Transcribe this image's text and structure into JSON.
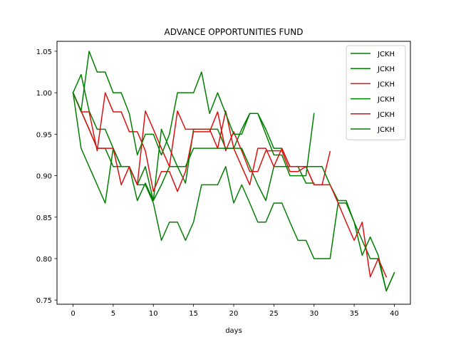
{
  "chart_data": {
    "type": "line",
    "title": "ADVANCE OPPORTUNITIES FUND",
    "xlabel": "days",
    "ylabel": "",
    "xlim": [
      -2,
      42
    ],
    "ylim": [
      0.745,
      1.062
    ],
    "xticks": [
      0,
      5,
      10,
      15,
      20,
      25,
      30,
      35,
      40
    ],
    "yticks": [
      0.75,
      0.8,
      0.85,
      0.9,
      0.95,
      1.0,
      1.05
    ],
    "ytick_labels": [
      "0.75",
      "0.80",
      "0.85",
      "0.90",
      "0.95",
      "1.00",
      "1.05"
    ],
    "grid": false,
    "legend_position": "upper right",
    "series": [
      {
        "name": "JCKH",
        "color": "#008000",
        "x": [
          0,
          1,
          2,
          3,
          4,
          5,
          6,
          7,
          8,
          9,
          10,
          11,
          12,
          13,
          14,
          15,
          16,
          17,
          18,
          19,
          20,
          21,
          22,
          23,
          24,
          25,
          26,
          27,
          28,
          29,
          30
        ],
        "values": [
          1.0,
          1.022,
          0.978,
          0.956,
          0.956,
          0.933,
          0.911,
          0.911,
          0.87,
          0.891,
          0.87,
          0.956,
          0.933,
          0.911,
          0.891,
          0.956,
          0.956,
          0.956,
          0.956,
          0.933,
          0.933,
          0.956,
          0.975,
          0.975,
          0.956,
          0.933,
          0.933,
          0.911,
          0.911,
          0.891,
          0.891
        ]
      },
      {
        "name": "JCKH",
        "color": "#008000",
        "x": [
          0,
          1,
          2,
          3,
          4,
          5,
          6,
          7,
          8,
          9,
          10,
          11,
          12,
          13,
          14,
          15,
          16,
          17,
          18,
          19,
          20,
          21,
          22,
          23,
          24,
          25,
          26,
          27,
          28,
          29,
          30,
          31,
          32,
          33,
          34,
          35,
          36,
          37,
          38,
          39,
          40
        ],
        "values": [
          1.0,
          0.933,
          0.911,
          0.889,
          0.867,
          0.933,
          0.911,
          0.911,
          0.889,
          0.889,
          0.867,
          0.822,
          0.844,
          0.844,
          0.822,
          0.844,
          0.889,
          0.889,
          0.889,
          0.911,
          0.867,
          0.889,
          0.867,
          0.844,
          0.844,
          0.867,
          0.867,
          0.844,
          0.822,
          0.822,
          0.8,
          0.8,
          0.8,
          0.867,
          0.867,
          0.844,
          0.804,
          0.826,
          0.804,
          0.761,
          0.783
        ]
      },
      {
        "name": "JCKH",
        "color": "#dd1111",
        "x": [
          0,
          1,
          2,
          3,
          4,
          5,
          6,
          7,
          8,
          9,
          10,
          11,
          12,
          13,
          14,
          15,
          16,
          17,
          18,
          19,
          20,
          21,
          22,
          23,
          24,
          25,
          26,
          27,
          28,
          29,
          30,
          31,
          32
        ],
        "values": [
          1.0,
          0.977,
          0.977,
          0.93,
          1.0,
          0.977,
          0.977,
          0.953,
          0.953,
          0.93,
          0.881,
          0.905,
          0.905,
          0.881,
          0.905,
          0.953,
          0.953,
          0.953,
          0.977,
          0.93,
          0.953,
          0.93,
          0.905,
          0.905,
          0.93,
          0.93,
          0.93,
          0.905,
          0.905,
          0.911,
          0.889,
          0.889,
          0.929
        ]
      },
      {
        "name": "JCKH",
        "color": "#008000",
        "x": [
          0,
          1,
          2,
          3,
          4,
          5,
          6,
          7,
          8,
          9,
          10,
          11,
          12,
          13,
          14,
          15,
          16,
          17,
          18,
          19,
          20,
          21,
          22,
          23,
          24,
          25,
          26,
          27,
          28,
          29,
          30,
          31,
          32,
          33,
          34,
          35,
          36,
          37,
          38,
          39,
          40
        ],
        "values": [
          1.0,
          0.978,
          0.956,
          0.933,
          0.933,
          0.911,
          0.911,
          0.911,
          0.889,
          0.911,
          0.87,
          0.889,
          0.911,
          0.911,
          0.911,
          0.933,
          0.933,
          0.933,
          0.933,
          0.933,
          0.933,
          0.933,
          0.911,
          0.889,
          0.87,
          0.911,
          0.911,
          0.911,
          0.911,
          0.911,
          0.911,
          0.911,
          0.889,
          0.87,
          0.87,
          0.844,
          0.822,
          0.8,
          0.8,
          0.761,
          0.783
        ]
      },
      {
        "name": "JCKH",
        "color": "#dd1111",
        "x": [
          0,
          1,
          2,
          3,
          4,
          5,
          6,
          7,
          8,
          9,
          10,
          11,
          12,
          13,
          14,
          15,
          16,
          17,
          18,
          19,
          20,
          21,
          22,
          23,
          24,
          25,
          26,
          27,
          28,
          29,
          30,
          31,
          32,
          33,
          34,
          35,
          36,
          37,
          38,
          39
        ],
        "values": [
          1.0,
          0.978,
          0.956,
          0.933,
          0.933,
          0.933,
          0.889,
          0.911,
          0.889,
          0.978,
          0.956,
          0.933,
          0.911,
          0.978,
          0.956,
          0.956,
          0.956,
          0.956,
          0.933,
          0.978,
          0.933,
          0.911,
          0.889,
          0.933,
          0.933,
          0.911,
          0.933,
          0.911,
          0.911,
          0.911,
          0.889,
          0.889,
          0.889,
          0.867,
          0.844,
          0.822,
          0.844,
          0.778,
          0.8,
          0.778
        ]
      },
      {
        "name": "JCKH",
        "color": "#008000",
        "x": [
          0,
          1,
          2,
          3,
          4,
          5,
          6,
          7,
          8,
          9,
          10,
          11,
          12,
          13,
          14,
          15,
          16,
          17,
          18,
          19,
          20,
          21,
          22,
          23,
          24,
          25,
          26,
          27,
          28,
          29,
          30
        ],
        "values": [
          1.0,
          0.978,
          1.05,
          1.025,
          1.025,
          1.0,
          1.0,
          0.975,
          0.925,
          0.95,
          0.95,
          0.925,
          0.95,
          1.0,
          1.0,
          1.0,
          1.025,
          0.975,
          1.0,
          0.975,
          0.95,
          0.95,
          0.975,
          0.975,
          0.95,
          0.925,
          0.925,
          0.9,
          0.9,
          0.9,
          0.975
        ]
      }
    ]
  }
}
